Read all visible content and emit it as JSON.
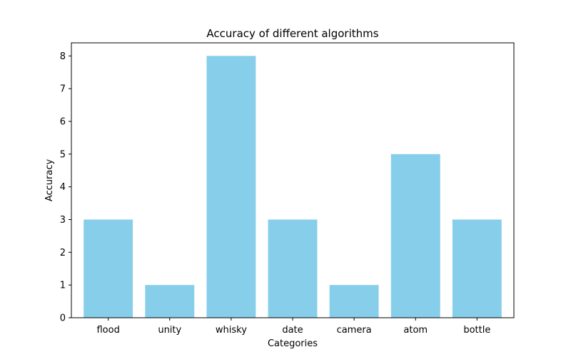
{
  "chart_data": {
    "type": "bar",
    "title": "Accuracy of different algorithms",
    "xlabel": "Categories",
    "ylabel": "Accuracy",
    "categories": [
      "flood",
      "unity",
      "whisky",
      "date",
      "camera",
      "atom",
      "bottle"
    ],
    "values": [
      3,
      1,
      8,
      3,
      1,
      5,
      3
    ],
    "ylim": [
      0,
      8.4
    ],
    "yticks": [
      0,
      1,
      2,
      3,
      4,
      5,
      6,
      7,
      8
    ],
    "grid": false,
    "legend": "none",
    "bar_color": "#87ceeb"
  }
}
